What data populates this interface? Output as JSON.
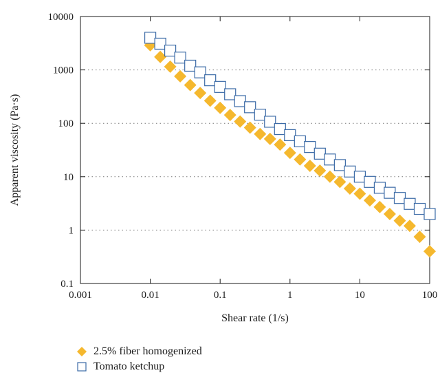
{
  "chart_data": {
    "type": "scatter",
    "xlabel": "Shear rate (1/s)",
    "ylabel": "Apparent viscosity (Pa·s)",
    "xscale": "log",
    "yscale": "log",
    "xlim": [
      0.001,
      100
    ],
    "ylim": [
      0.1,
      10000
    ],
    "xticks": [
      "0.001",
      "0.01",
      "0.1",
      "1",
      "10",
      "100"
    ],
    "yticks": [
      "0.1",
      "1",
      "10",
      "100",
      "1000",
      "10000"
    ],
    "grid": "horizontal dotted",
    "legend_position": "bottom",
    "series": [
      {
        "name": "2.5% fiber homogenized",
        "marker": "diamond",
        "color": "#f5b82e",
        "x": [
          0.01,
          0.0139,
          0.0193,
          0.0268,
          0.0373,
          0.0518,
          0.072,
          0.1,
          0.139,
          0.193,
          0.268,
          0.373,
          0.518,
          0.72,
          1,
          1.39,
          1.93,
          2.68,
          3.73,
          5.18,
          7.2,
          10,
          13.9,
          19.3,
          26.8,
          37.3,
          51.8,
          72.0,
          100
        ],
        "y": [
          2900,
          1750,
          1150,
          760,
          520,
          370,
          265,
          195,
          143,
          108,
          83,
          63,
          51,
          40,
          28,
          21,
          16,
          13,
          10,
          8,
          6,
          4.8,
          3.6,
          2.7,
          2.0,
          1.5,
          1.2,
          0.75,
          0.4
        ]
      },
      {
        "name": "Tomato ketchup",
        "marker": "square",
        "color": "#3b6aa6",
        "x": [
          0.01,
          0.0139,
          0.0193,
          0.0268,
          0.0373,
          0.0518,
          0.072,
          0.1,
          0.139,
          0.193,
          0.268,
          0.373,
          0.518,
          0.72,
          1,
          1.39,
          1.93,
          2.68,
          3.73,
          5.18,
          7.2,
          10,
          13.9,
          19.3,
          26.8,
          37.3,
          51.8,
          72.0,
          100
        ],
        "y": [
          4000,
          3100,
          2300,
          1700,
          1200,
          900,
          640,
          480,
          350,
          260,
          200,
          145,
          107,
          78,
          60,
          46,
          36,
          27,
          21,
          16.5,
          12.5,
          10,
          8,
          6.2,
          5,
          4,
          3.1,
          2.5,
          2
        ]
      }
    ]
  }
}
